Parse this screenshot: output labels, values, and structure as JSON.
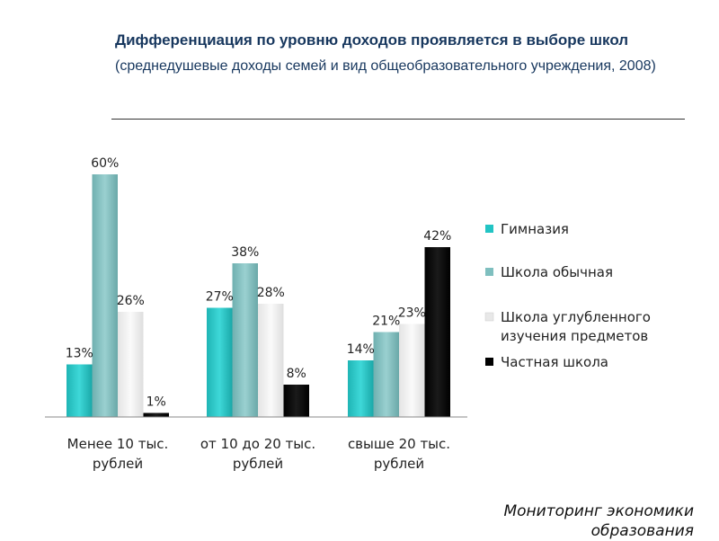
{
  "header": {
    "title": "Дифференциация по уровню доходов проявляется в выборе школ",
    "subtitle": "(среднедушевые доходы семей и вид общеобразовательного учреждения, 2008)"
  },
  "footer": {
    "line1": "Мониторинг экономики",
    "line2": "образования"
  },
  "chart_data": {
    "type": "bar",
    "categories": [
      [
        "Менее 10 тыс.",
        "рублей"
      ],
      [
        "от 10 до 20 тыс.",
        "рублей"
      ],
      [
        "свыше 20 тыс.",
        "рублей"
      ]
    ],
    "series": [
      {
        "name": [
          "Гимназия"
        ],
        "values": [
          13,
          27,
          14
        ],
        "labels": [
          "13%",
          "27%",
          "14%"
        ],
        "color": "#22C4C4"
      },
      {
        "name": [
          "Школа обычная"
        ],
        "values": [
          60,
          38,
          21
        ],
        "labels": [
          "60%",
          "38%",
          "21%"
        ],
        "color": "#7FBFBF"
      },
      {
        "name": [
          "Школа углубленного",
          "изучения предметов"
        ],
        "values": [
          26,
          28,
          23
        ],
        "labels": [
          "26%",
          "28%",
          "23%"
        ],
        "color": "#EDEDED"
      },
      {
        "name": [
          "Частная школа"
        ],
        "values": [
          1,
          8,
          42
        ],
        "labels": [
          "1%",
          "8%",
          "42%"
        ],
        "color": "#000000"
      }
    ],
    "ylim": [
      0,
      60
    ],
    "legend": "right",
    "grid": false
  }
}
